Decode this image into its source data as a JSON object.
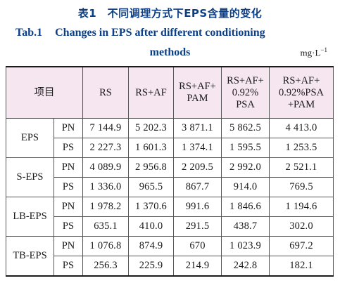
{
  "caption": {
    "cn": "表1　不同调理方式下EPS含量的变化",
    "en_label": "Tab.1",
    "en_line1": "Changes in EPS after different conditioning",
    "en_line2": "methods"
  },
  "unit": {
    "base": "mg·L",
    "exp": "−1"
  },
  "headers": [
    [
      "项目"
    ],
    [
      "RS"
    ],
    [
      "RS+AF"
    ],
    [
      "RS+AF+",
      "PAM"
    ],
    [
      "RS+AF+",
      "0.92%",
      "PSA"
    ],
    [
      "RS+AF+",
      "0.92%PSA",
      "+PAM"
    ]
  ],
  "groups": [
    {
      "name": "EPS",
      "rows": [
        {
          "sub": "PN",
          "values": [
            "7 144.9",
            "5 202.3",
            "3 871.1",
            "5 862.5",
            "4 413.0"
          ]
        },
        {
          "sub": "PS",
          "values": [
            "2 227.3",
            "1 601.3",
            "1 374.1",
            "1 595.5",
            "1 253.5"
          ]
        }
      ]
    },
    {
      "name": "S-EPS",
      "rows": [
        {
          "sub": "PN",
          "values": [
            "4 089.9",
            "2 956.8",
            "2 209.5",
            "2 992.0",
            "2 521.1"
          ]
        },
        {
          "sub": "PS",
          "values": [
            "1 336.0",
            "965.5",
            "867.7",
            "914.0",
            "769.5"
          ]
        }
      ]
    },
    {
      "name": "LB-EPS",
      "rows": [
        {
          "sub": "PN",
          "values": [
            "1 978.2",
            "1 370.6",
            "991.6",
            "1 846.6",
            "1 194.6"
          ]
        },
        {
          "sub": "PS",
          "values": [
            "635.1",
            "410.0",
            "291.5",
            "438.7",
            "302.0"
          ]
        }
      ]
    },
    {
      "name": "TB-EPS",
      "rows": [
        {
          "sub": "PN",
          "values": [
            "1 076.8",
            "874.9",
            "670",
            "1 023.9",
            "697.2"
          ]
        },
        {
          "sub": "PS",
          "values": [
            "256.3",
            "225.9",
            "214.9",
            "242.8",
            "182.1"
          ]
        }
      ]
    }
  ],
  "colors": {
    "caption": "#0c3f85",
    "header_bg": "#f5e6f0",
    "rule": "#1a1a1a"
  }
}
